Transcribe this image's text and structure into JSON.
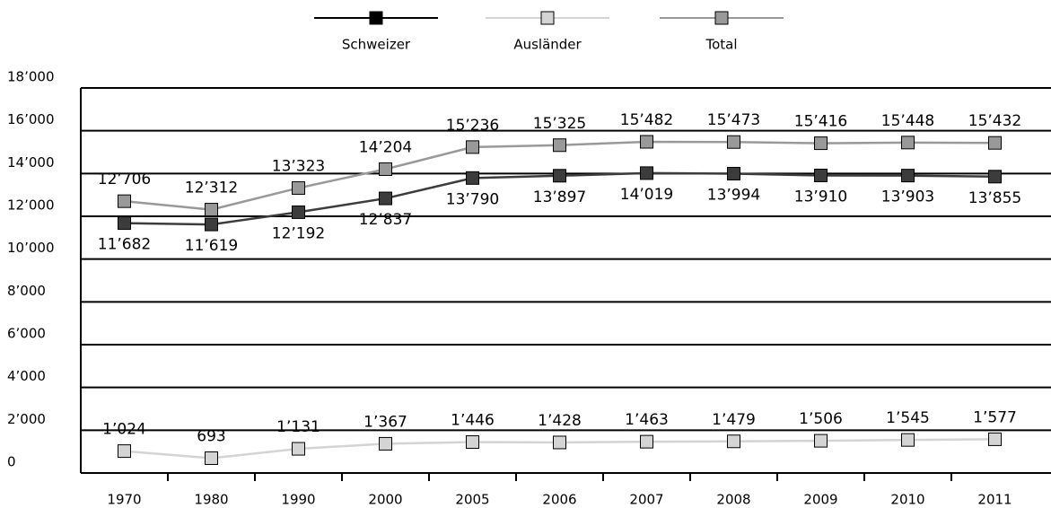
{
  "chart_data": {
    "type": "line",
    "categories": [
      "1970",
      "1980",
      "1990",
      "2000",
      "2005",
      "2006",
      "2007",
      "2008",
      "2009",
      "2010",
      "2011"
    ],
    "series": [
      {
        "name": "Schweizer",
        "color": "#3c3c3c",
        "values": [
          11682,
          11619,
          12192,
          12837,
          13790,
          13897,
          14019,
          13994,
          13910,
          13903,
          13855
        ],
        "value_labels": [
          "11’682",
          "11’619",
          "12’192",
          "12’837",
          "13’790",
          "13’897",
          "14’019",
          "13’994",
          "13’910",
          "13’903",
          "13’855"
        ]
      },
      {
        "name": "Ausländer",
        "color": "#d4d4d4",
        "values": [
          1024,
          693,
          1131,
          1367,
          1446,
          1428,
          1463,
          1479,
          1506,
          1545,
          1577
        ],
        "value_labels": [
          "1’024",
          "693",
          "1’131",
          "1’367",
          "1’446",
          "1’428",
          "1’463",
          "1’479",
          "1’506",
          "1’545",
          "1’577"
        ]
      },
      {
        "name": "Total",
        "color": "#999999",
        "values": [
          12706,
          12312,
          13323,
          14204,
          15236,
          15325,
          15482,
          15473,
          15416,
          15448,
          15432
        ],
        "value_labels": [
          "12’706",
          "12’312",
          "13’323",
          "14’204",
          "15’236",
          "15’325",
          "15’482",
          "15’473",
          "15’416",
          "15’448",
          "15’432"
        ]
      }
    ],
    "ylim": [
      0,
      18000
    ],
    "yticks": [
      0,
      {
        "value": 2000,
        "label": "2’000"
      },
      {
        "value": 4000,
        "label": "4’000"
      },
      {
        "value": 6000,
        "label": "6’000"
      },
      {
        "value": 8000,
        "label": "8’000"
      },
      {
        "value": 10000,
        "label": "10’000"
      },
      {
        "value": 12000,
        "label": "12’000"
      },
      {
        "value": 14000,
        "label": "14’000"
      },
      {
        "value": 16000,
        "label": "16’000"
      },
      {
        "value": 18000,
        "label": "18’000"
      }
    ],
    "grid": true,
    "legend": "top"
  }
}
